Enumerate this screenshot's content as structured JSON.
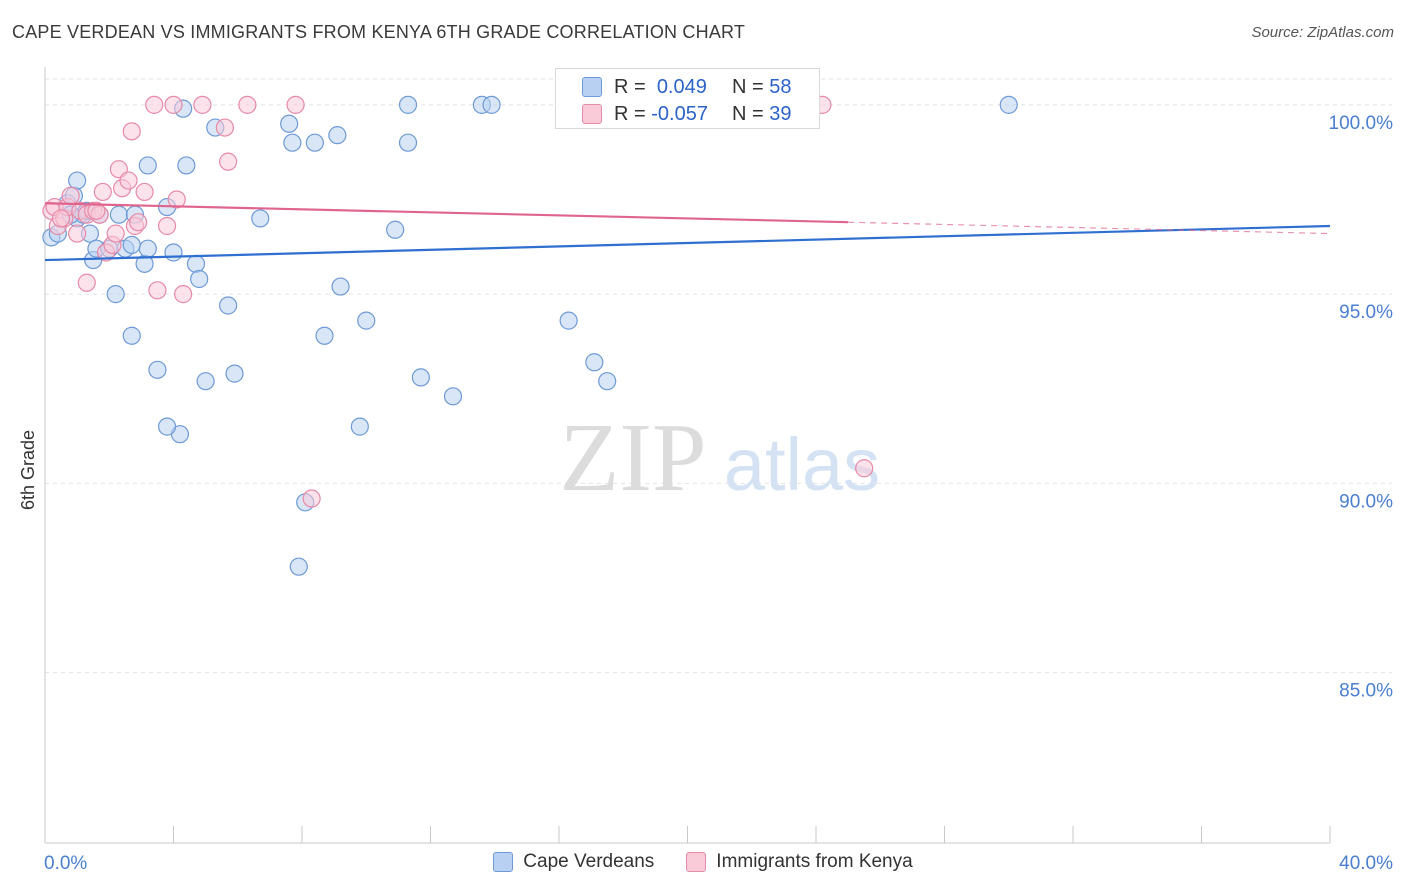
{
  "title": "CAPE VERDEAN VS IMMIGRANTS FROM KENYA 6TH GRADE CORRELATION CHART",
  "source": "Source: ZipAtlas.com",
  "watermark": {
    "zip": "ZIP",
    "atlas": "atlas"
  },
  "legend_top": {
    "rows": [
      {
        "r_label": "R =",
        "r_value": "0.049",
        "n_label": "N =",
        "n_value": "58"
      },
      {
        "r_label": "R =",
        "r_value": "-0.057",
        "n_label": "N =",
        "n_value": "39"
      }
    ]
  },
  "legend_bottom": {
    "series1": "Cape Verdeans",
    "series2": "Immigrants from Kenya"
  },
  "colors": {
    "blue_fill": "#b8d1f2",
    "blue_stroke": "#6f9ad6",
    "blue_line": "#2f6fcf",
    "pink_fill": "#f9cbd8",
    "pink_stroke": "#e78aa8",
    "pink_line": "#e0658e",
    "axis_label": "#4a7fd0",
    "grid": "#e2e2e2"
  },
  "chart_data": {
    "type": "scatter",
    "title": "CAPE VERDEAN VS IMMIGRANTS FROM KENYA 6TH GRADE CORRELATION CHART",
    "xlabel": "",
    "ylabel": "6th Grade",
    "xlim": [
      0,
      40
    ],
    "ylim": [
      80.5,
      101.0
    ],
    "x_tick_labels": [
      {
        "value": 0,
        "label": "0.0%"
      },
      {
        "value": 40,
        "label": "40.0%"
      }
    ],
    "y_ticks": [
      {
        "value": 100,
        "label": "100.0%"
      },
      {
        "value": 95,
        "label": "95.0%"
      },
      {
        "value": 90,
        "label": "90.0%"
      },
      {
        "value": 85,
        "label": "85.0%"
      }
    ],
    "series": [
      {
        "name": "Cape Verdeans",
        "r": 0.049,
        "n": 58,
        "trend": {
          "x": [
            0,
            40
          ],
          "y": [
            95.9,
            96.8
          ]
        },
        "points": [
          [
            0.2,
            96.5
          ],
          [
            0.4,
            96.6
          ],
          [
            0.7,
            97.4
          ],
          [
            0.9,
            97.6
          ],
          [
            1.0,
            97.0
          ],
          [
            1.0,
            98.0
          ],
          [
            1.2,
            97.1
          ],
          [
            1.4,
            96.6
          ],
          [
            1.5,
            95.9
          ],
          [
            1.6,
            96.2
          ],
          [
            1.7,
            97.1
          ],
          [
            2.0,
            96.2
          ],
          [
            2.2,
            95.0
          ],
          [
            2.3,
            97.1
          ],
          [
            2.5,
            96.2
          ],
          [
            2.7,
            93.9
          ],
          [
            2.8,
            97.1
          ],
          [
            3.1,
            95.8
          ],
          [
            3.2,
            98.4
          ],
          [
            3.2,
            96.2
          ],
          [
            3.5,
            93.0
          ],
          [
            3.8,
            97.3
          ],
          [
            4.0,
            96.1
          ],
          [
            4.3,
            99.9
          ],
          [
            4.4,
            98.4
          ],
          [
            4.7,
            95.8
          ],
          [
            4.8,
            95.4
          ],
          [
            5.0,
            92.7
          ],
          [
            5.3,
            99.4
          ],
          [
            5.7,
            94.7
          ],
          [
            5.9,
            92.9
          ],
          [
            6.7,
            97.0
          ],
          [
            7.6,
            99.5
          ],
          [
            7.7,
            99.0
          ],
          [
            7.9,
            87.8
          ],
          [
            8.1,
            89.5
          ],
          [
            8.4,
            99.0
          ],
          [
            8.7,
            93.9
          ],
          [
            9.1,
            99.2
          ],
          [
            9.2,
            95.2
          ],
          [
            9.8,
            91.5
          ],
          [
            10.0,
            94.3
          ],
          [
            10.9,
            96.7
          ],
          [
            11.3,
            99.0
          ],
          [
            11.3,
            100.0
          ],
          [
            11.7,
            92.8
          ],
          [
            12.7,
            92.3
          ],
          [
            13.6,
            100.0
          ],
          [
            13.9,
            100.0
          ],
          [
            16.3,
            94.3
          ],
          [
            17.1,
            93.2
          ],
          [
            17.5,
            92.7
          ],
          [
            30.0,
            100.0
          ],
          [
            4.2,
            91.3
          ],
          [
            3.8,
            91.5
          ],
          [
            0.8,
            97.1
          ],
          [
            1.3,
            97.2
          ],
          [
            2.7,
            96.3
          ]
        ]
      },
      {
        "name": "Immigrants from Kenya",
        "r": -0.057,
        "n": 39,
        "trend": {
          "x": [
            0,
            25
          ],
          "y": [
            97.4,
            96.9
          ]
        },
        "trend_dashed": {
          "x": [
            25,
            40
          ],
          "y": [
            96.9,
            96.6
          ]
        },
        "points": [
          [
            0.2,
            97.2
          ],
          [
            0.3,
            97.3
          ],
          [
            0.4,
            96.8
          ],
          [
            0.6,
            97.0
          ],
          [
            0.7,
            97.3
          ],
          [
            0.8,
            97.6
          ],
          [
            1.0,
            96.6
          ],
          [
            1.1,
            97.2
          ],
          [
            1.3,
            97.1
          ],
          [
            1.3,
            95.3
          ],
          [
            1.5,
            97.2
          ],
          [
            1.7,
            97.1
          ],
          [
            1.8,
            97.7
          ],
          [
            1.9,
            96.1
          ],
          [
            2.1,
            96.3
          ],
          [
            2.2,
            96.6
          ],
          [
            2.3,
            98.3
          ],
          [
            2.4,
            97.8
          ],
          [
            2.6,
            98.0
          ],
          [
            2.7,
            99.3
          ],
          [
            2.8,
            96.8
          ],
          [
            2.9,
            96.9
          ],
          [
            3.1,
            97.7
          ],
          [
            3.4,
            100.0
          ],
          [
            3.5,
            95.1
          ],
          [
            3.8,
            96.8
          ],
          [
            4.0,
            100.0
          ],
          [
            4.1,
            97.5
          ],
          [
            4.3,
            95.0
          ],
          [
            4.9,
            100.0
          ],
          [
            5.6,
            99.4
          ],
          [
            5.7,
            98.5
          ],
          [
            6.3,
            100.0
          ],
          [
            7.8,
            100.0
          ],
          [
            8.3,
            89.6
          ],
          [
            24.2,
            100.0
          ],
          [
            25.5,
            90.4
          ],
          [
            0.5,
            97.0
          ],
          [
            1.6,
            97.2
          ]
        ]
      }
    ]
  }
}
